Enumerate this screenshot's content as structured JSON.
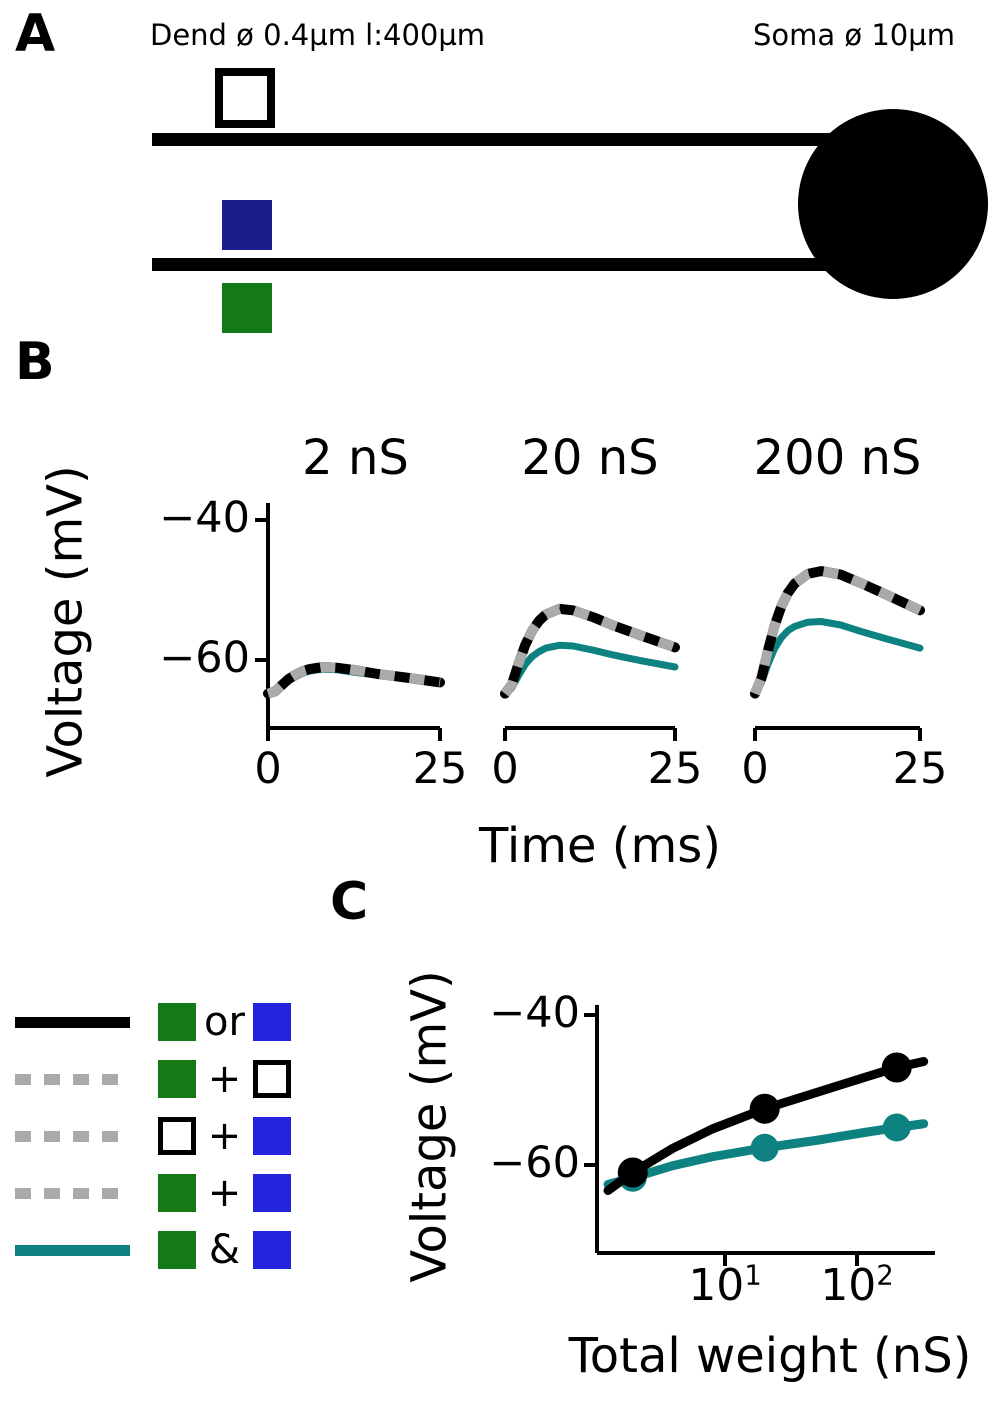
{
  "colors": {
    "black": "#000000",
    "teal": "#0e8181",
    "green": "#157a15",
    "navy": "#1b1b8c",
    "blue": "#2424dd",
    "dash_gray": "#aaaaaa"
  },
  "panel_a": {
    "label": "A",
    "dend_label": "Dend ø 0.4µm l:400µm",
    "soma_label": "Soma ø 10µm"
  },
  "panel_b": {
    "label": "B"
  },
  "panel_c": {
    "label": "C"
  },
  "legend": {
    "rows": [
      {
        "line": "solid-black",
        "left": "green",
        "op": "or",
        "right": "blue"
      },
      {
        "line": "dashed-gray",
        "left": "green",
        "op": "+",
        "right": "white"
      },
      {
        "line": "dashed-gray",
        "left": "white",
        "op": "+",
        "right": "blue"
      },
      {
        "line": "dashed-gray",
        "left": "green",
        "op": "+",
        "right": "blue"
      },
      {
        "line": "solid-teal",
        "left": "green",
        "op": "&",
        "right": "blue"
      }
    ]
  },
  "chart_data": [
    {
      "id": "panel_b",
      "type": "line",
      "xlabel": "Time (ms)",
      "ylabel": "Voltage (mV)",
      "xlim": [
        0,
        25
      ],
      "ylim": [
        -67,
        -38
      ],
      "x_ticks": [
        {
          "value": 0,
          "label": "0"
        },
        {
          "value": 25,
          "label": "25"
        }
      ],
      "y_ticks": [
        {
          "value": -40,
          "label": "−40"
        },
        {
          "value": -60,
          "label": "−60"
        }
      ],
      "subplots": [
        {
          "title": "2 nS",
          "series": [
            {
              "name": "summed-inputs-black-dashed",
              "color": "black",
              "t": [
                0,
                1,
                2,
                3,
                4,
                5,
                6,
                8,
                10,
                13,
                16,
                20,
                25
              ],
              "v": [
                -64.8,
                -64.5,
                -63.6,
                -62.7,
                -62.1,
                -61.6,
                -61.3,
                -61.0,
                -61.1,
                -61.5,
                -62.0,
                -62.5,
                -63.2
              ]
            },
            {
              "name": "clustered-teal",
              "color": "teal",
              "t": [
                0,
                1,
                2,
                3,
                4,
                5,
                6,
                8,
                10,
                13,
                16,
                20,
                25
              ],
              "v": [
                -64.8,
                -64.6,
                -63.8,
                -63.0,
                -62.4,
                -61.9,
                -61.6,
                -61.3,
                -61.4,
                -61.8,
                -62.2,
                -62.7,
                -63.4
              ]
            }
          ]
        },
        {
          "title": "20 nS",
          "series": [
            {
              "name": "summed-inputs-black-dashed",
              "color": "black",
              "t": [
                0,
                1,
                2,
                3,
                4,
                5,
                6,
                8,
                10,
                13,
                16,
                20,
                25
              ],
              "v": [
                -64.8,
                -63.5,
                -60.5,
                -57.8,
                -55.8,
                -54.4,
                -53.5,
                -52.7,
                -52.9,
                -53.9,
                -55.1,
                -56.5,
                -58.2
              ]
            },
            {
              "name": "clustered-teal",
              "color": "teal",
              "t": [
                0,
                1,
                2,
                3,
                4,
                5,
                6,
                8,
                10,
                13,
                16,
                20,
                25
              ],
              "v": [
                -64.8,
                -64.0,
                -62.2,
                -60.6,
                -59.5,
                -58.8,
                -58.3,
                -57.9,
                -58.0,
                -58.6,
                -59.3,
                -60.1,
                -61.0
              ]
            }
          ]
        },
        {
          "title": "200 nS",
          "series": [
            {
              "name": "summed-inputs-black-dashed",
              "color": "black",
              "t": [
                0,
                1,
                2,
                3,
                4,
                5,
                6,
                8,
                10,
                13,
                16,
                20,
                25
              ],
              "v": [
                -64.8,
                -62.5,
                -58.5,
                -55.0,
                -52.3,
                -50.4,
                -49.1,
                -47.7,
                -47.3,
                -47.8,
                -49.0,
                -50.7,
                -52.9
              ]
            },
            {
              "name": "clustered-teal",
              "color": "teal",
              "t": [
                0,
                1,
                2,
                3,
                4,
                5,
                6,
                8,
                10,
                13,
                16,
                20,
                25
              ],
              "v": [
                -64.8,
                -63.2,
                -60.5,
                -58.3,
                -56.8,
                -55.8,
                -55.2,
                -54.6,
                -54.5,
                -55.0,
                -55.9,
                -57.0,
                -58.3
              ]
            }
          ]
        }
      ]
    },
    {
      "id": "panel_c",
      "type": "scatter-line",
      "xscale": "log",
      "xlabel": "Total weight (nS)",
      "ylabel": "Voltage (mV)",
      "ylim": [
        -67,
        -38
      ],
      "x_ticks": [
        {
          "value": 10,
          "base": "10",
          "exp": "1"
        },
        {
          "value": 100,
          "base": "10",
          "exp": "2"
        }
      ],
      "y_ticks": [
        {
          "value": -40,
          "label": "−40"
        },
        {
          "value": -60,
          "label": "−60"
        }
      ],
      "series": [
        {
          "name": "summed-inputs-black",
          "color": "black",
          "points": {
            "x": [
              2,
              20,
              200
            ],
            "y": [
              -61,
              -52.5,
              -47
            ]
          },
          "line": {
            "x": [
              1.3,
              2,
              4,
              8,
              20,
              50,
              120,
              200,
              320
            ],
            "y": [
              -63.4,
              -61,
              -57.8,
              -55.2,
              -52.5,
              -50.3,
              -48.2,
              -47,
              -46.2
            ]
          }
        },
        {
          "name": "clustered-teal",
          "color": "teal",
          "points": {
            "x": [
              2,
              20,
              200
            ],
            "y": [
              -61.7,
              -57.7,
              -55
            ]
          },
          "line": {
            "x": [
              1.3,
              2,
              4,
              8,
              20,
              50,
              120,
              200,
              320
            ],
            "y": [
              -62.6,
              -61.7,
              -60.1,
              -58.9,
              -57.7,
              -56.7,
              -55.6,
              -55,
              -54.5
            ]
          }
        }
      ]
    }
  ]
}
